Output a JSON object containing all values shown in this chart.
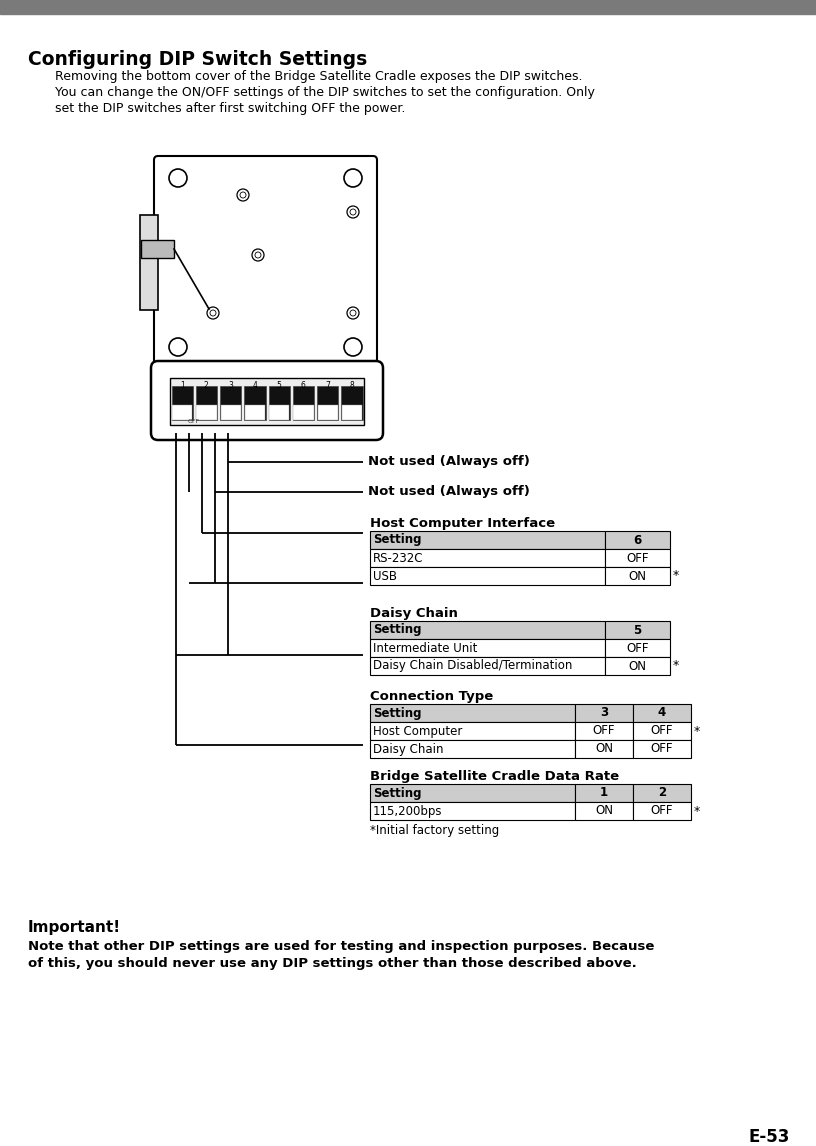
{
  "page_label": "E-53",
  "title": "Configuring DIP Switch Settings",
  "intro_lines": [
    "Removing the bottom cover of the Bridge Satellite Cradle exposes the DIP switches.",
    "You can change the ON/OFF settings of the DIP switches to set the configuration. Only",
    "set the DIP switches after first switching OFF the power."
  ],
  "not_used_1": "Not used (Always off)",
  "not_used_2": "Not used (Always off)",
  "table1_label": "Host Computer Interface",
  "table1_header": [
    "Setting",
    "6"
  ],
  "table1_rows": [
    [
      "RS-232C",
      "OFF"
    ],
    [
      "USB",
      "ON"
    ]
  ],
  "table1_star_row": 2,
  "table2_label": "Daisy Chain",
  "table2_header": [
    "Setting",
    "5"
  ],
  "table2_rows": [
    [
      "Intermediate Unit",
      "OFF"
    ],
    [
      "Daisy Chain Disabled/Termination",
      "ON"
    ]
  ],
  "table2_star_row": 2,
  "table3_label": "Connection Type",
  "table3_header": [
    "Setting",
    "3",
    "4"
  ],
  "table3_rows": [
    [
      "Host Computer",
      "OFF",
      "OFF"
    ],
    [
      "Daisy Chain",
      "ON",
      "OFF"
    ]
  ],
  "table3_star_row": 1,
  "table4_label": "Bridge Satellite Cradle Data Rate",
  "table4_header": [
    "Setting",
    "1",
    "2"
  ],
  "table4_rows": [
    [
      "115,200bps",
      "ON",
      "OFF"
    ]
  ],
  "table4_star_row": 1,
  "footnote": "*Initial factory setting",
  "important_title": "Important!",
  "important_lines": [
    "Note that other DIP settings are used for testing and inspection purposes. Because",
    "of this, you should never use any DIP settings other than those described above."
  ],
  "bg_color": "#ffffff",
  "header_color": "#cccccc",
  "text_color": "#000000",
  "top_bar_color": "#7a7a7a"
}
